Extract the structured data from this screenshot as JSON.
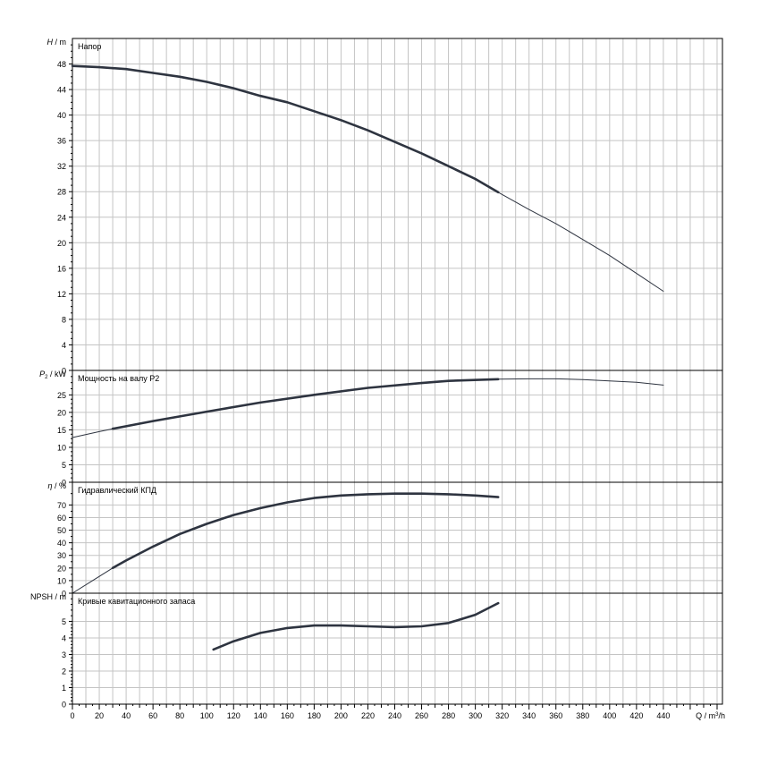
{
  "chart_data": {
    "type": "line",
    "x_axis": {
      "label_prefix": "Q / m",
      "label_sup": "3",
      "label_suffix": "/h",
      "ticks": [
        0,
        20,
        40,
        60,
        80,
        100,
        120,
        140,
        160,
        180,
        200,
        220,
        240,
        260,
        280,
        300,
        320,
        340,
        360,
        380,
        400,
        420,
        440
      ],
      "range": [
        0,
        484
      ],
      "grid": true
    },
    "panels": [
      {
        "id": "head",
        "title": "Напор",
        "axis_label": "H / m",
        "axis_label_main": "H",
        "axis_label_sub": "",
        "axis_label_unit": "m",
        "ylim": [
          0,
          52
        ],
        "ticks": [
          0,
          4,
          8,
          12,
          16,
          20,
          24,
          28,
          32,
          36,
          40,
          44,
          48
        ],
        "series": [
          {
            "style": "thick",
            "points": [
              [
                0,
                47.7
              ],
              [
                20,
                47.5
              ],
              [
                40,
                47.2
              ],
              [
                60,
                46.6
              ],
              [
                80,
                46
              ],
              [
                100,
                45.2
              ],
              [
                120,
                44.2
              ],
              [
                140,
                43
              ],
              [
                160,
                42
              ],
              [
                180,
                40.6
              ],
              [
                200,
                39.2
              ],
              [
                220,
                37.6
              ],
              [
                240,
                35.8
              ],
              [
                260,
                34
              ],
              [
                280,
                32
              ],
              [
                300,
                30
              ],
              [
                317,
                27.9
              ]
            ]
          },
          {
            "style": "thin",
            "points": [
              [
                317,
                27.9
              ],
              [
                340,
                25.2
              ],
              [
                360,
                23
              ],
              [
                380,
                20.5
              ],
              [
                400,
                18
              ],
              [
                420,
                15.2
              ],
              [
                440,
                12.4
              ]
            ]
          }
        ]
      },
      {
        "id": "power",
        "title": "Мощность на валу P2",
        "axis_label": "P2 / kW",
        "axis_label_main": "P",
        "axis_label_sub": "2",
        "axis_label_unit": "kW",
        "ylim": [
          0,
          32
        ],
        "ticks": [
          0,
          5,
          10,
          15,
          20,
          25
        ],
        "series": [
          {
            "style": "thin",
            "points": [
              [
                0,
                12.8
              ],
              [
                20,
                14.5
              ],
              [
                30,
                15.3
              ]
            ]
          },
          {
            "style": "thick",
            "points": [
              [
                30,
                15.3
              ],
              [
                60,
                17.5
              ],
              [
                100,
                20.2
              ],
              [
                140,
                22.8
              ],
              [
                180,
                25
              ],
              [
                220,
                27
              ],
              [
                260,
                28.4
              ],
              [
                280,
                29
              ],
              [
                317,
                29.5
              ]
            ]
          },
          {
            "style": "thin",
            "points": [
              [
                317,
                29.5
              ],
              [
                340,
                29.6
              ],
              [
                360,
                29.6
              ],
              [
                380,
                29.4
              ],
              [
                400,
                29
              ],
              [
                420,
                28.6
              ],
              [
                440,
                27.8
              ]
            ]
          }
        ]
      },
      {
        "id": "efficiency",
        "title": "Гидравлический КПД",
        "axis_label": "η / %",
        "axis_label_main": "η",
        "axis_label_sub": "",
        "axis_label_unit": "%",
        "ylim": [
          0,
          88
        ],
        "ticks": [
          0,
          10,
          20,
          30,
          40,
          50,
          60,
          70
        ],
        "series": [
          {
            "style": "thin",
            "points": [
              [
                0,
                0
              ],
              [
                15,
                10
              ],
              [
                30,
                20
              ]
            ]
          },
          {
            "style": "thick",
            "points": [
              [
                30,
                20
              ],
              [
                40,
                26
              ],
              [
                60,
                37
              ],
              [
                80,
                47
              ],
              [
                100,
                55
              ],
              [
                120,
                62
              ],
              [
                140,
                67.5
              ],
              [
                160,
                72
              ],
              [
                180,
                75.5
              ],
              [
                200,
                77.5
              ],
              [
                220,
                78.5
              ],
              [
                240,
                79
              ],
              [
                260,
                79
              ],
              [
                280,
                78.5
              ],
              [
                300,
                77.5
              ],
              [
                317,
                76.2
              ]
            ]
          }
        ]
      },
      {
        "id": "npsh",
        "title": "Кривые кавитационного запаса",
        "axis_label": "NPSH / m",
        "axis_label_main": "NPSH",
        "axis_label_sub": "",
        "axis_label_unit": "m",
        "ylim": [
          0,
          6.7
        ],
        "ticks": [
          0,
          1,
          2,
          3,
          4,
          5
        ],
        "series": [
          {
            "style": "thick",
            "points": [
              [
                105,
                3.3
              ],
              [
                120,
                3.8
              ],
              [
                140,
                4.3
              ],
              [
                160,
                4.6
              ],
              [
                180,
                4.75
              ],
              [
                200,
                4.75
              ],
              [
                220,
                4.7
              ],
              [
                240,
                4.65
              ],
              [
                260,
                4.7
              ],
              [
                280,
                4.9
              ],
              [
                300,
                5.4
              ],
              [
                317,
                6.1
              ]
            ]
          }
        ]
      }
    ]
  }
}
